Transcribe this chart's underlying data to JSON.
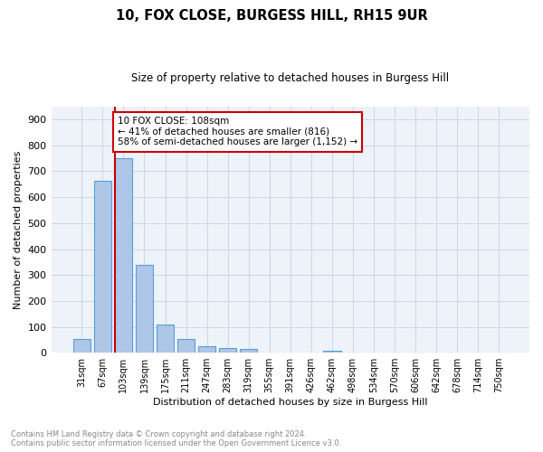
{
  "title": "10, FOX CLOSE, BURGESS HILL, RH15 9UR",
  "subtitle": "Size of property relative to detached houses in Burgess Hill",
  "xlabel": "Distribution of detached houses by size in Burgess Hill",
  "ylabel": "Number of detached properties",
  "footnote1": "Contains HM Land Registry data © Crown copyright and database right 2024.",
  "footnote2": "Contains public sector information licensed under the Open Government Licence v3.0.",
  "bar_labels": [
    "31sqm",
    "67sqm",
    "103sqm",
    "139sqm",
    "175sqm",
    "211sqm",
    "247sqm",
    "283sqm",
    "319sqm",
    "355sqm",
    "391sqm",
    "426sqm",
    "462sqm",
    "498sqm",
    "534sqm",
    "570sqm",
    "606sqm",
    "642sqm",
    "678sqm",
    "714sqm",
    "750sqm"
  ],
  "bar_values": [
    52,
    665,
    750,
    338,
    108,
    52,
    25,
    18,
    13,
    0,
    0,
    0,
    8,
    0,
    0,
    0,
    0,
    0,
    0,
    0,
    0
  ],
  "bar_color": "#aec6e8",
  "bar_edge_color": "#5a9fd4",
  "property_label": "10 FOX CLOSE: 108sqm",
  "annotation_line1": "← 41% of detached houses are smaller (816)",
  "annotation_line2": "58% of semi-detached houses are larger (1,152) →",
  "vline_color": "#cc0000",
  "vline_pos": 1.57,
  "annotation_box_edge": "#cc0000",
  "grid_color": "#c8d8e8",
  "background_color": "#eef2f9",
  "ylim": [
    0,
    950
  ],
  "yticks": [
    0,
    100,
    200,
    300,
    400,
    500,
    600,
    700,
    800,
    900
  ]
}
